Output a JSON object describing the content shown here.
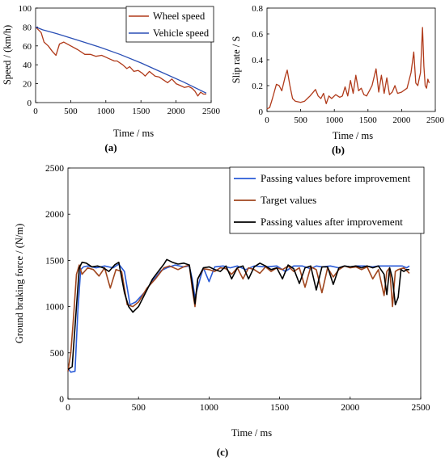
{
  "chart_data": [
    {
      "id": "a",
      "panel_label": "(a)",
      "type": "line",
      "xlabel": "Time / ms",
      "ylabel": "Speed / (km/h)",
      "xlim": [
        0,
        2500
      ],
      "ylim": [
        0,
        100
      ],
      "xticks": [
        0,
        500,
        1000,
        1500,
        2000,
        2500
      ],
      "yticks": [
        0,
        20,
        40,
        60,
        80,
        100
      ],
      "grid": false,
      "legend": "top-right",
      "series": [
        {
          "name": "Wheel speed",
          "color": "#b03a1a",
          "x": [
            0,
            40,
            80,
            120,
            180,
            240,
            290,
            340,
            400,
            500,
            600,
            700,
            780,
            860,
            940,
            1000,
            1060,
            1120,
            1160,
            1240,
            1300,
            1340,
            1400,
            1460,
            1520,
            1560,
            1620,
            1700,
            1760,
            1820,
            1880,
            1940,
            2000,
            2060,
            2120,
            2180,
            2230,
            2270,
            2310,
            2350,
            2390,
            2430
          ],
          "y": [
            80,
            77,
            74,
            64,
            60,
            54,
            50,
            62,
            64,
            60,
            56,
            51,
            51,
            49,
            50,
            48,
            46,
            44,
            44,
            40,
            36,
            38,
            33,
            34,
            31,
            28,
            33,
            28,
            27,
            24,
            21,
            25,
            20,
            18,
            16,
            17,
            15,
            12,
            7,
            11,
            9,
            9
          ]
        },
        {
          "name": "Vehicle speed",
          "color": "#2a4fb5",
          "x": [
            0,
            100,
            300,
            600,
            900,
            1200,
            1500,
            1800,
            2100,
            2430
          ],
          "y": [
            80,
            77,
            73,
            66,
            59,
            51,
            42,
            32,
            22,
            10
          ]
        }
      ]
    },
    {
      "id": "b",
      "panel_label": "(b)",
      "type": "line",
      "xlabel": "Time / ms",
      "ylabel": "Slip rate / S",
      "xlim": [
        0,
        2500
      ],
      "ylim": [
        0,
        0.8
      ],
      "xticks": [
        0,
        500,
        1000,
        1500,
        2000,
        2500
      ],
      "yticks": [
        0,
        0.2,
        0.4,
        0.6,
        0.8
      ],
      "ytick_labels": [
        "0",
        "0.2",
        "0.4",
        "0.6",
        "0.8"
      ],
      "grid": false,
      "series": [
        {
          "name": "",
          "color": "#b03a1a",
          "x": [
            0,
            40,
            80,
            140,
            180,
            220,
            270,
            300,
            340,
            380,
            420,
            500,
            560,
            640,
            720,
            760,
            800,
            840,
            880,
            920,
            960,
            1020,
            1080,
            1120,
            1160,
            1200,
            1240,
            1280,
            1320,
            1360,
            1400,
            1440,
            1480,
            1520,
            1560,
            1620,
            1660,
            1700,
            1740,
            1780,
            1820,
            1860,
            1900,
            1940,
            2000,
            2080,
            2140,
            2180,
            2210,
            2240,
            2260,
            2280,
            2310,
            2330,
            2350,
            2370,
            2390,
            2410
          ],
          "y": [
            0.02,
            0.03,
            0.1,
            0.21,
            0.2,
            0.16,
            0.27,
            0.32,
            0.2,
            0.1,
            0.08,
            0.07,
            0.08,
            0.12,
            0.17,
            0.12,
            0.1,
            0.14,
            0.06,
            0.12,
            0.1,
            0.13,
            0.11,
            0.12,
            0.19,
            0.12,
            0.24,
            0.14,
            0.28,
            0.16,
            0.18,
            0.13,
            0.12,
            0.16,
            0.2,
            0.33,
            0.15,
            0.28,
            0.14,
            0.26,
            0.13,
            0.15,
            0.2,
            0.14,
            0.15,
            0.18,
            0.3,
            0.46,
            0.22,
            0.2,
            0.25,
            0.3,
            0.65,
            0.35,
            0.2,
            0.18,
            0.25,
            0.22
          ]
        }
      ]
    },
    {
      "id": "c",
      "panel_label": "(c)",
      "type": "line",
      "xlabel": "Time / ms",
      "ylabel": "Ground braking force / (N/m)",
      "xlim": [
        0,
        2500
      ],
      "ylim": [
        0,
        2500
      ],
      "xticks": [
        0,
        500,
        1000,
        1500,
        2000,
        2500
      ],
      "yticks": [
        0,
        500,
        1000,
        1500,
        2000,
        2500
      ],
      "grid": false,
      "legend": "top-right",
      "series": [
        {
          "name": "Passing values before improvement",
          "color": "#2a5bd7",
          "x": [
            0,
            20,
            50,
            70,
            90,
            110,
            140,
            200,
            260,
            320,
            360,
            400,
            440,
            480,
            540,
            600,
            660,
            700,
            760,
            820,
            860,
            880,
            900,
            940,
            960,
            1000,
            1040,
            1100,
            1150,
            1200,
            1260,
            1320,
            1400,
            1480,
            1540,
            1600,
            1660,
            1720,
            1760,
            1800,
            1860,
            1920,
            1960,
            2000,
            2050,
            2100,
            2160,
            2200,
            2240,
            2280,
            2300,
            2340,
            2370,
            2400,
            2420
          ],
          "y": [
            330,
            290,
            300,
            950,
            1400,
            1430,
            1440,
            1420,
            1440,
            1420,
            1460,
            1380,
            1020,
            1050,
            1150,
            1280,
            1390,
            1420,
            1450,
            1430,
            1440,
            1300,
            1100,
            1320,
            1420,
            1270,
            1430,
            1440,
            1420,
            1440,
            1400,
            1440,
            1430,
            1440,
            1380,
            1440,
            1440,
            1410,
            1440,
            1430,
            1440,
            1420,
            1440,
            1430,
            1440,
            1440,
            1430,
            1440,
            1440,
            1440,
            1440,
            1440,
            1440,
            1420,
            1440
          ]
        },
        {
          "name": "Target values",
          "color": "#a0461e",
          "x": [
            0,
            20,
            40,
            60,
            80,
            100,
            140,
            180,
            220,
            260,
            300,
            340,
            380,
            420,
            460,
            500,
            560,
            620,
            680,
            720,
            780,
            820,
            860,
            880,
            900,
            920,
            960,
            1000,
            1040,
            1080,
            1120,
            1160,
            1200,
            1240,
            1280,
            1320,
            1360,
            1400,
            1440,
            1480,
            1520,
            1560,
            1600,
            1640,
            1680,
            1720,
            1760,
            1800,
            1840,
            1880,
            1920,
            1960,
            2000,
            2040,
            2080,
            2120,
            2160,
            2200,
            2240,
            2260,
            2280,
            2300,
            2320,
            2340,
            2380,
            2420
          ],
          "y": [
            300,
            500,
            900,
            1350,
            1450,
            1350,
            1420,
            1400,
            1330,
            1420,
            1200,
            1400,
            1380,
            1020,
            1000,
            1050,
            1200,
            1300,
            1420,
            1440,
            1400,
            1430,
            1450,
            1200,
            1000,
            1300,
            1410,
            1400,
            1380,
            1420,
            1410,
            1350,
            1420,
            1300,
            1420,
            1400,
            1360,
            1430,
            1380,
            1420,
            1400,
            1440,
            1380,
            1420,
            1210,
            1430,
            1400,
            1150,
            1420,
            1320,
            1400,
            1440,
            1420,
            1430,
            1400,
            1430,
            1300,
            1400,
            1120,
            1380,
            1420,
            1000,
            1380,
            1400,
            1420,
            1360
          ]
        },
        {
          "name": "Passing values after improvement",
          "color": "#000000",
          "x": [
            0,
            30,
            60,
            80,
            100,
            130,
            170,
            210,
            250,
            290,
            330,
            360,
            400,
            430,
            460,
            500,
            550,
            600,
            640,
            680,
            700,
            740,
            780,
            820,
            860,
            880,
            900,
            920,
            960,
            1000,
            1040,
            1080,
            1120,
            1160,
            1200,
            1240,
            1280,
            1320,
            1360,
            1400,
            1440,
            1480,
            1520,
            1560,
            1600,
            1640,
            1680,
            1720,
            1760,
            1800,
            1840,
            1880,
            1920,
            1960,
            2000,
            2040,
            2080,
            2120,
            2160,
            2200,
            2240,
            2260,
            2280,
            2300,
            2320,
            2340,
            2360,
            2380,
            2400,
            2420
          ],
          "y": [
            320,
            350,
            1000,
            1420,
            1480,
            1470,
            1430,
            1440,
            1420,
            1380,
            1450,
            1480,
            1150,
            1000,
            940,
            1000,
            1150,
            1300,
            1380,
            1460,
            1510,
            1480,
            1460,
            1470,
            1450,
            1250,
            1030,
            1300,
            1420,
            1430,
            1400,
            1380,
            1440,
            1300,
            1420,
            1440,
            1300,
            1430,
            1470,
            1440,
            1400,
            1420,
            1300,
            1450,
            1410,
            1250,
            1420,
            1440,
            1180,
            1430,
            1430,
            1240,
            1420,
            1440,
            1430,
            1440,
            1420,
            1440,
            1420,
            1440,
            1350,
            1130,
            1420,
            1300,
            1020,
            1100,
            1400,
            1380,
            1400,
            1400
          ]
        }
      ]
    }
  ]
}
